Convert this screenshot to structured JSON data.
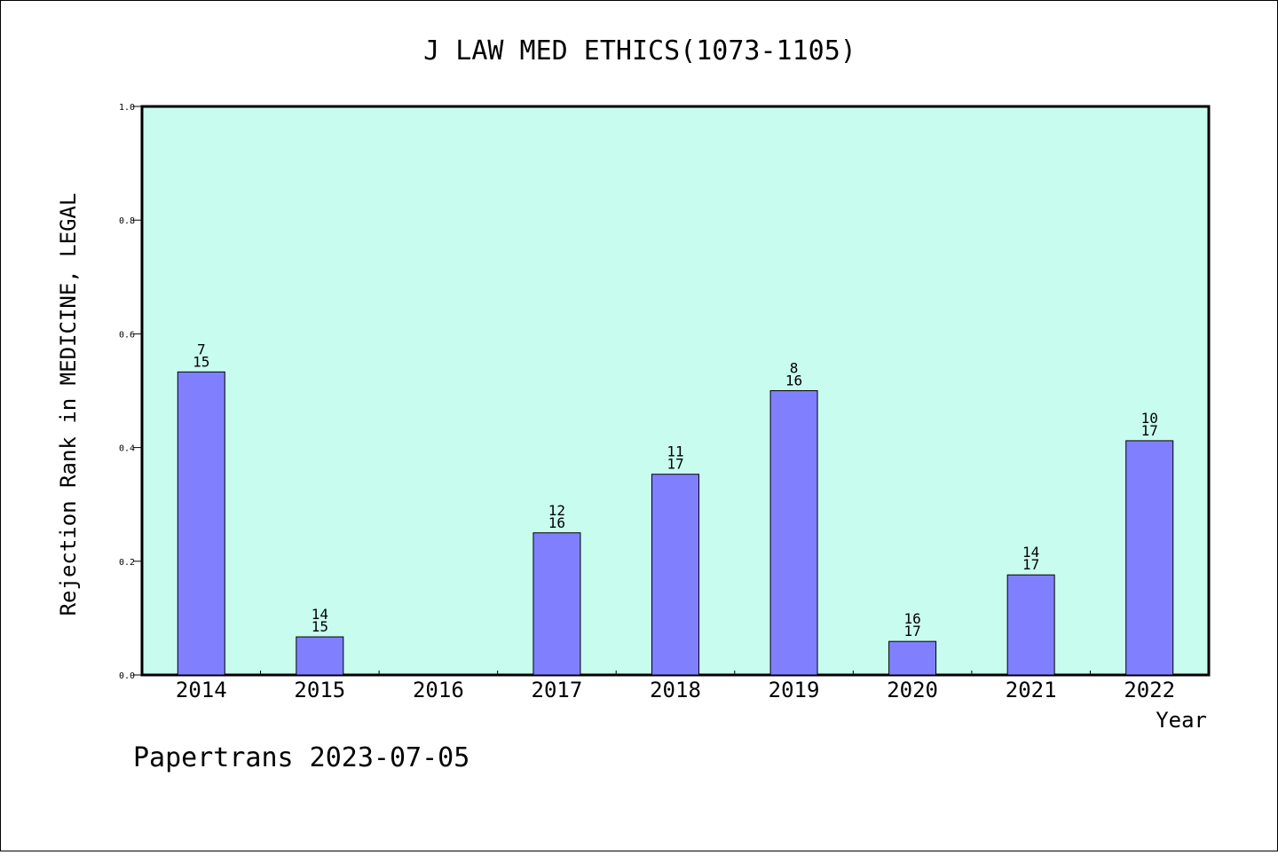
{
  "chart_data": {
    "type": "bar",
    "title": "J LAW MED ETHICS(1073-1105)",
    "xlabel": "Year",
    "ylabel": "Rejection Rank in MEDICINE, LEGAL",
    "ylim": [
      0,
      1.0
    ],
    "yticks": [
      "0.0",
      "0.2",
      "0.4",
      "0.6",
      "0.8",
      "1.0"
    ],
    "categories": [
      "2014",
      "2015",
      "2016",
      "2017",
      "2018",
      "2019",
      "2020",
      "2021",
      "2022"
    ],
    "values": [
      0.533,
      0.067,
      null,
      0.25,
      0.353,
      0.5,
      0.059,
      0.176,
      0.412
    ],
    "labels_top": [
      "7",
      "14",
      "",
      "12",
      "11",
      "8",
      "16",
      "14",
      "10"
    ],
    "labels_bottom": [
      "15",
      "15",
      "",
      "16",
      "17",
      "16",
      "17",
      "17",
      "17"
    ],
    "grid": false,
    "colors": {
      "plot_bg": "#c8fcee",
      "bar_fill": "#8080ff",
      "bar_stroke": "#000000"
    }
  },
  "footer": "Papertrans 2023-07-05"
}
